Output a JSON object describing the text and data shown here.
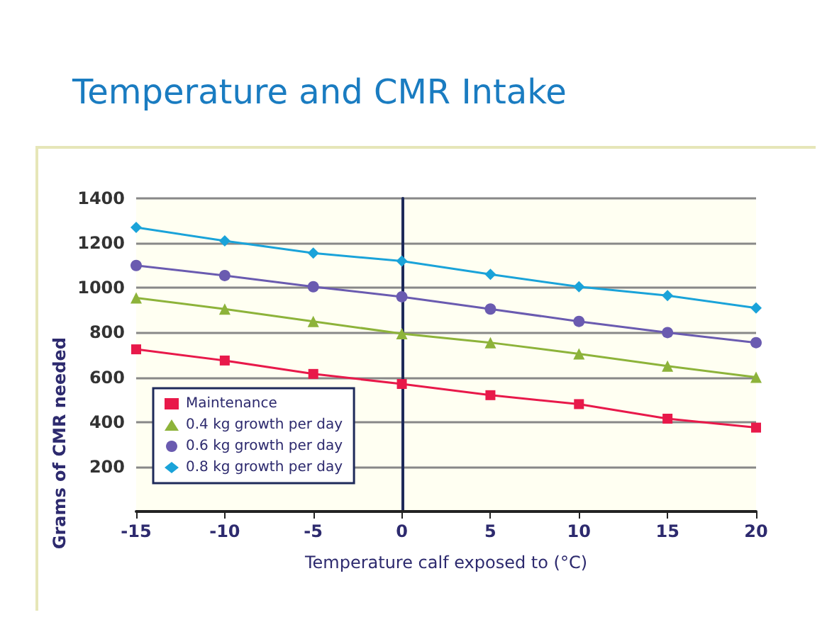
{
  "chart_data": {
    "type": "line",
    "title": "Temperature and CMR Intake",
    "xlabel": "Temperature calf exposed to (°C)",
    "ylabel": "Grams of CMR needed",
    "x": [
      -15,
      -10,
      -5,
      0,
      5,
      10,
      15,
      20
    ],
    "series": [
      {
        "name": "Maintenance",
        "color": "#e8194a",
        "marker": "square",
        "values": [
          725,
          675,
          615,
          570,
          520,
          480,
          415,
          375
        ]
      },
      {
        "name": "0.4 kg growth per day",
        "color": "#8db33a",
        "marker": "triangle",
        "values": [
          955,
          905,
          850,
          795,
          755,
          705,
          650,
          600
        ]
      },
      {
        "name": "0.6 kg growth per day",
        "color": "#6a5bb0",
        "marker": "circle",
        "values": [
          1100,
          1055,
          1005,
          960,
          905,
          850,
          800,
          755
        ]
      },
      {
        "name": "0.8 kg growth per day",
        "color": "#1aa3d9",
        "marker": "diamond",
        "values": [
          1270,
          1210,
          1155,
          1120,
          1060,
          1005,
          965,
          910
        ]
      }
    ],
    "xlim": [
      -15,
      20
    ],
    "xticks": [
      -15,
      -10,
      -5,
      0,
      5,
      10,
      15,
      20
    ],
    "ylim": [
      0,
      1400
    ],
    "yticks": [
      {
        "value": 0,
        "label": null
      },
      200,
      400,
      600,
      800,
      1000,
      1200,
      1400
    ],
    "grid": "y",
    "legend": "bottom left"
  }
}
